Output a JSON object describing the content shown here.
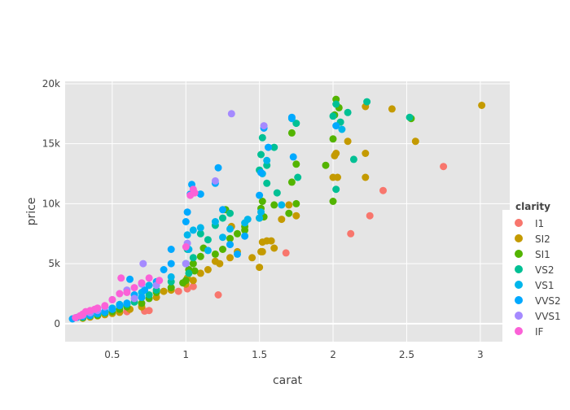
{
  "chart_data": {
    "type": "scatter",
    "xlabel": "carat",
    "ylabel": "price",
    "xlim": [
      0.18,
      3.2
    ],
    "ylim": [
      -1500,
      20200
    ],
    "x_ticks": [
      {
        "value": 0.5,
        "label": "0.5"
      },
      {
        "value": 1,
        "label": "1"
      },
      {
        "value": 1.5,
        "label": "1.5"
      },
      {
        "value": 2,
        "label": "2"
      },
      {
        "value": 2.5,
        "label": "2.5"
      },
      {
        "value": 3,
        "label": "3"
      }
    ],
    "y_ticks": [
      {
        "value": 0,
        "label": "0"
      },
      {
        "value": 5000,
        "label": "5k"
      },
      {
        "value": 10000,
        "label": "10k"
      },
      {
        "value": 15000,
        "label": "15k"
      },
      {
        "value": 20000,
        "label": "20k"
      }
    ],
    "grid": true,
    "plot_background": "#e5e5e5",
    "legend": {
      "title": "clarity",
      "position": "right"
    },
    "series": [
      {
        "name": "I1",
        "color": "#f8766d",
        "points": [
          [
            0.6,
            1000
          ],
          [
            0.72,
            1050
          ],
          [
            0.75,
            1100
          ],
          [
            1.01,
            2900
          ],
          [
            1.22,
            2400
          ],
          [
            1.68,
            5900
          ],
          [
            2.12,
            7500
          ],
          [
            2.25,
            9000
          ],
          [
            2.34,
            11100
          ],
          [
            2.75,
            13100
          ],
          [
            0.95,
            2700
          ],
          [
            1.05,
            3100
          ]
        ]
      },
      {
        "name": "SI2",
        "color": "#c49a00",
        "points": [
          [
            0.3,
            450
          ],
          [
            0.35,
            550
          ],
          [
            0.4,
            650
          ],
          [
            0.45,
            750
          ],
          [
            0.5,
            850
          ],
          [
            0.55,
            950
          ],
          [
            0.62,
            1200
          ],
          [
            0.7,
            1400
          ],
          [
            0.8,
            2200
          ],
          [
            0.85,
            2700
          ],
          [
            0.9,
            2800
          ],
          [
            1.0,
            3300
          ],
          [
            1.01,
            3800
          ],
          [
            1.02,
            4500
          ],
          [
            1.05,
            3600
          ],
          [
            1.1,
            4200
          ],
          [
            1.15,
            4500
          ],
          [
            1.2,
            5200
          ],
          [
            1.23,
            5000
          ],
          [
            1.3,
            5500
          ],
          [
            1.35,
            6000
          ],
          [
            1.5,
            4700
          ],
          [
            1.51,
            6000
          ],
          [
            1.52,
            6800
          ],
          [
            1.55,
            6900
          ],
          [
            1.58,
            6900
          ],
          [
            1.65,
            8700
          ],
          [
            1.7,
            9900
          ],
          [
            1.75,
            9000
          ],
          [
            2.0,
            12200
          ],
          [
            2.01,
            14000
          ],
          [
            2.02,
            14200
          ],
          [
            2.03,
            12200
          ],
          [
            2.1,
            15200
          ],
          [
            2.22,
            14200
          ],
          [
            2.22,
            12200
          ],
          [
            2.22,
            18100
          ],
          [
            2.4,
            17900
          ],
          [
            2.56,
            15200
          ],
          [
            3.01,
            18200
          ],
          [
            1.31,
            8100
          ],
          [
            1.52,
            6000
          ],
          [
            1.6,
            6300
          ],
          [
            1.45,
            5500
          ]
        ]
      },
      {
        "name": "SI1",
        "color": "#53b400",
        "points": [
          [
            0.3,
            500
          ],
          [
            0.4,
            700
          ],
          [
            0.5,
            1000
          ],
          [
            0.55,
            1200
          ],
          [
            0.6,
            1400
          ],
          [
            0.7,
            1700
          ],
          [
            0.75,
            2100
          ],
          [
            0.8,
            2600
          ],
          [
            0.9,
            3000
          ],
          [
            0.98,
            3400
          ],
          [
            1.0,
            3600
          ],
          [
            1.02,
            4500
          ],
          [
            1.05,
            5000
          ],
          [
            1.1,
            5600
          ],
          [
            1.2,
            5800
          ],
          [
            1.25,
            6200
          ],
          [
            1.3,
            7100
          ],
          [
            1.35,
            7500
          ],
          [
            1.4,
            7800
          ],
          [
            1.5,
            8800
          ],
          [
            1.51,
            9600
          ],
          [
            1.52,
            10200
          ],
          [
            1.53,
            8900
          ],
          [
            1.6,
            9900
          ],
          [
            1.7,
            9200
          ],
          [
            1.72,
            11800
          ],
          [
            1.75,
            10000
          ],
          [
            1.95,
            13200
          ],
          [
            2.0,
            15400
          ],
          [
            2.01,
            17400
          ],
          [
            2.02,
            18700
          ],
          [
            2.04,
            18000
          ],
          [
            2.53,
            17100
          ],
          [
            2.0,
            10200
          ],
          [
            1.72,
            15900
          ],
          [
            1.75,
            13300
          ],
          [
            1.06,
            4400
          ],
          [
            1.12,
            6300
          ],
          [
            1.27,
            9500
          ],
          [
            1.4,
            8100
          ]
        ]
      },
      {
        "name": "VS2",
        "color": "#00c094",
        "points": [
          [
            0.3,
            550
          ],
          [
            0.35,
            650
          ],
          [
            0.4,
            800
          ],
          [
            0.45,
            900
          ],
          [
            0.5,
            1200
          ],
          [
            0.55,
            1500
          ],
          [
            0.6,
            1600
          ],
          [
            0.65,
            1800
          ],
          [
            0.7,
            2200
          ],
          [
            0.75,
            2400
          ],
          [
            0.8,
            2800
          ],
          [
            0.9,
            3500
          ],
          [
            1.0,
            5000
          ],
          [
            1.01,
            6200
          ],
          [
            1.02,
            4200
          ],
          [
            1.05,
            5500
          ],
          [
            1.1,
            7500
          ],
          [
            1.15,
            7000
          ],
          [
            1.2,
            8200
          ],
          [
            1.25,
            8800
          ],
          [
            1.3,
            9200
          ],
          [
            1.5,
            12800
          ],
          [
            1.51,
            14100
          ],
          [
            1.52,
            15500
          ],
          [
            1.55,
            13200
          ],
          [
            1.6,
            14700
          ],
          [
            1.62,
            10900
          ],
          [
            1.75,
            16700
          ],
          [
            1.76,
            12200
          ],
          [
            2.0,
            17300
          ],
          [
            2.02,
            18300
          ],
          [
            2.05,
            16800
          ],
          [
            2.1,
            17600
          ],
          [
            2.14,
            13700
          ],
          [
            2.23,
            18500
          ],
          [
            2.52,
            17200
          ],
          [
            2.02,
            11200
          ],
          [
            1.55,
            11700
          ]
        ]
      },
      {
        "name": "VS1",
        "color": "#00b6eb",
        "points": [
          [
            0.3,
            600
          ],
          [
            0.35,
            700
          ],
          [
            0.4,
            900
          ],
          [
            0.45,
            1000
          ],
          [
            0.5,
            1300
          ],
          [
            0.55,
            1600
          ],
          [
            0.6,
            1700
          ],
          [
            0.7,
            2600
          ],
          [
            0.75,
            3200
          ],
          [
            0.9,
            3900
          ],
          [
            1.0,
            5000
          ],
          [
            1.01,
            7400
          ],
          [
            1.02,
            6200
          ],
          [
            1.05,
            7800
          ],
          [
            1.1,
            8000
          ],
          [
            1.2,
            8500
          ],
          [
            1.25,
            7200
          ],
          [
            1.3,
            7900
          ],
          [
            1.4,
            8400
          ],
          [
            1.5,
            8800
          ],
          [
            1.51,
            9300
          ],
          [
            1.52,
            12500
          ],
          [
            1.55,
            13600
          ],
          [
            1.65,
            9900
          ],
          [
            1.72,
            17100
          ],
          [
            2.06,
            16200
          ],
          [
            1.42,
            8700
          ],
          [
            1.15,
            6100
          ]
        ]
      },
      {
        "name": "VVS2",
        "color": "#00a9ff",
        "points": [
          [
            0.23,
            400
          ],
          [
            0.26,
            520
          ],
          [
            0.3,
            600
          ],
          [
            0.35,
            700
          ],
          [
            0.4,
            850
          ],
          [
            0.45,
            1000
          ],
          [
            0.5,
            1200
          ],
          [
            0.55,
            1500
          ],
          [
            0.6,
            1700
          ],
          [
            0.62,
            3700
          ],
          [
            0.65,
            2400
          ],
          [
            0.7,
            2200
          ],
          [
            0.72,
            2800
          ],
          [
            0.8,
            3500
          ],
          [
            0.9,
            5000
          ],
          [
            0.9,
            6200
          ],
          [
            1.0,
            8500
          ],
          [
            1.01,
            9300
          ],
          [
            1.03,
            10800
          ],
          [
            1.04,
            11600
          ],
          [
            1.1,
            10800
          ],
          [
            1.2,
            11700
          ],
          [
            1.22,
            13000
          ],
          [
            1.3,
            6600
          ],
          [
            1.35,
            5800
          ],
          [
            1.4,
            7300
          ],
          [
            1.5,
            10700
          ],
          [
            1.51,
            12600
          ],
          [
            1.53,
            16300
          ],
          [
            1.56,
            14700
          ],
          [
            1.72,
            17200
          ],
          [
            1.73,
            13900
          ],
          [
            2.02,
            16500
          ],
          [
            0.85,
            4500
          ],
          [
            1.25,
            9500
          ]
        ]
      },
      {
        "name": "VVS1",
        "color": "#a58aff",
        "points": [
          [
            0.3,
            700
          ],
          [
            0.35,
            900
          ],
          [
            0.4,
            1100
          ],
          [
            0.45,
            1400
          ],
          [
            0.5,
            2000
          ],
          [
            0.55,
            2500
          ],
          [
            0.6,
            2800
          ],
          [
            0.7,
            3300
          ],
          [
            0.71,
            5000
          ],
          [
            0.8,
            3200
          ],
          [
            1.0,
            5000
          ],
          [
            1.01,
            6700
          ],
          [
            1.2,
            11900
          ],
          [
            1.31,
            17500
          ],
          [
            1.53,
            16500
          ],
          [
            0.65,
            2100
          ]
        ]
      },
      {
        "name": "IF",
        "color": "#fb61d7",
        "points": [
          [
            0.25,
            500
          ],
          [
            0.28,
            650
          ],
          [
            0.3,
            800
          ],
          [
            0.32,
            1000
          ],
          [
            0.35,
            1100
          ],
          [
            0.38,
            1200
          ],
          [
            0.4,
            1300
          ],
          [
            0.45,
            1500
          ],
          [
            0.5,
            2000
          ],
          [
            0.55,
            2500
          ],
          [
            0.56,
            3800
          ],
          [
            0.6,
            2600
          ],
          [
            0.65,
            3000
          ],
          [
            0.7,
            3400
          ],
          [
            0.75,
            3800
          ],
          [
            0.82,
            3600
          ],
          [
            1.03,
            10700
          ],
          [
            1.05,
            11200
          ],
          [
            1.06,
            10900
          ],
          [
            1.0,
            6400
          ]
        ]
      }
    ]
  }
}
